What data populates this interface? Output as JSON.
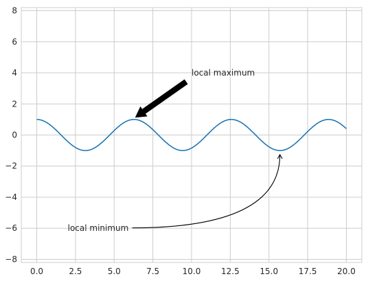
{
  "chart_data": {
    "type": "line",
    "title": "",
    "xlabel": "",
    "ylabel": "",
    "xlim": [
      -0.999,
      20.999
    ],
    "ylim": [
      -8.2,
      8.2
    ],
    "grid": true,
    "legend": "none",
    "x_ticks": [
      0.0,
      2.5,
      5.0,
      7.5,
      10.0,
      12.5,
      15.0,
      17.5,
      20.0
    ],
    "x_tick_labels": [
      "0.0",
      "2.5",
      "5.0",
      "7.5",
      "10.0",
      "12.5",
      "15.0",
      "17.5",
      "20.0"
    ],
    "y_ticks": [
      -8,
      -6,
      -4,
      -2,
      0,
      2,
      4,
      6,
      8
    ],
    "y_tick_labels": [
      "−8",
      "−6",
      "−4",
      "−2",
      "0",
      "2",
      "4",
      "6",
      "8"
    ],
    "series": [
      {
        "function": "cos(x)",
        "x_start": 0,
        "x_end": 20,
        "points": 1000,
        "color": "#1f77b4"
      }
    ],
    "annotations": [
      {
        "text": "local maximum",
        "xy": [
          6.28,
          1.0
        ],
        "xytext": [
          10.0,
          4.0
        ],
        "arrow": "fancy-thick",
        "color": "#000000"
      },
      {
        "text": "local minimum",
        "xy": [
          15.71,
          -1.0
        ],
        "xytext": [
          2.0,
          -6.0
        ],
        "arrow": "curved-angle3",
        "color": "#000000"
      }
    ]
  }
}
